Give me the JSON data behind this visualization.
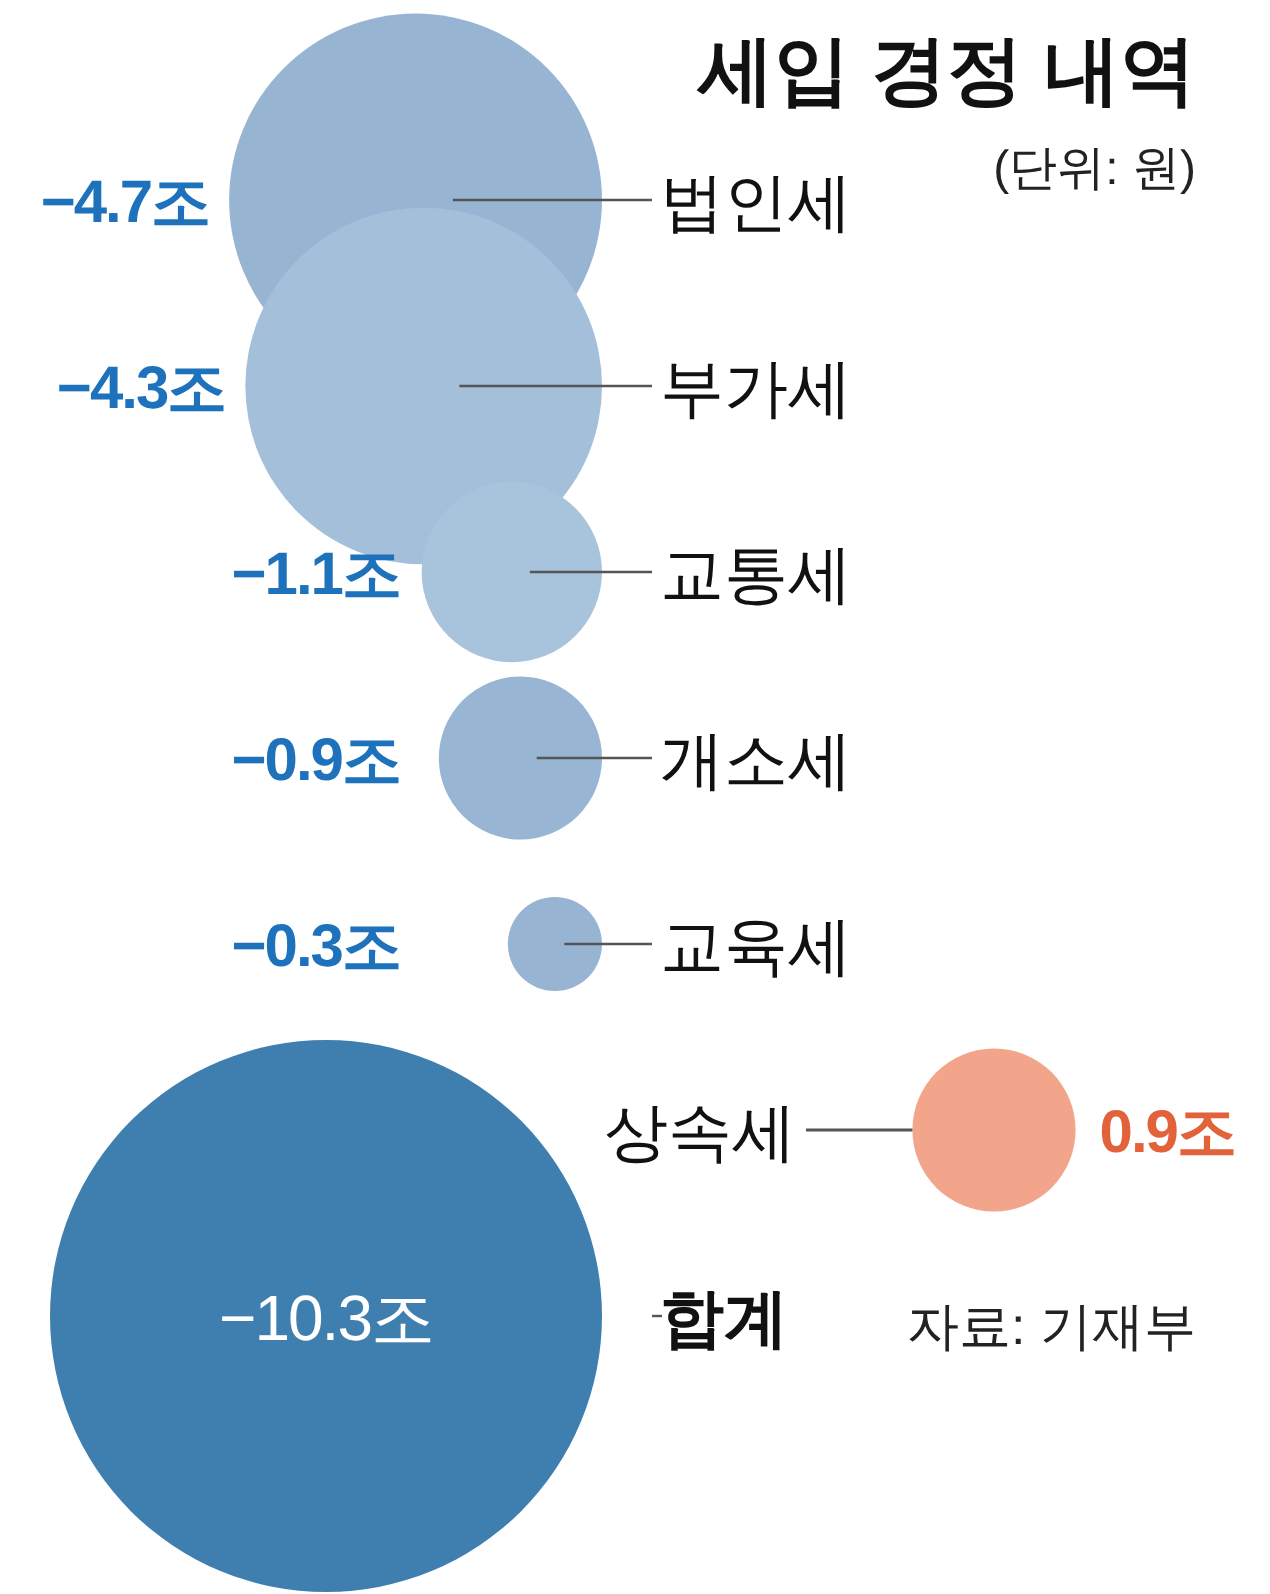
{
  "chart_data": {
    "type": "other",
    "title": "세입 경정 내역",
    "subtitle": "(단위: 원)",
    "annotations": [
      "자료: 기재부"
    ],
    "categories": [
      "법인세",
      "부가세",
      "교통세",
      "개소세",
      "교육세",
      "상속세",
      "합계"
    ],
    "values": [
      -4.7,
      -4.3,
      -1.1,
      -0.9,
      -0.3,
      0.9,
      -10.3
    ],
    "value_labels": [
      "−4.7조",
      "−4.3조",
      "−1.1조",
      "−0.9조",
      "−0.3조",
      "0.9조",
      "−10.3조"
    ],
    "colors": [
      "#97b5d3",
      "#a3bfd9",
      "#a8c3dc",
      "#98b6d3",
      "#97b5d3",
      "#f2a58a",
      "#3e7fb0"
    ]
  }
}
